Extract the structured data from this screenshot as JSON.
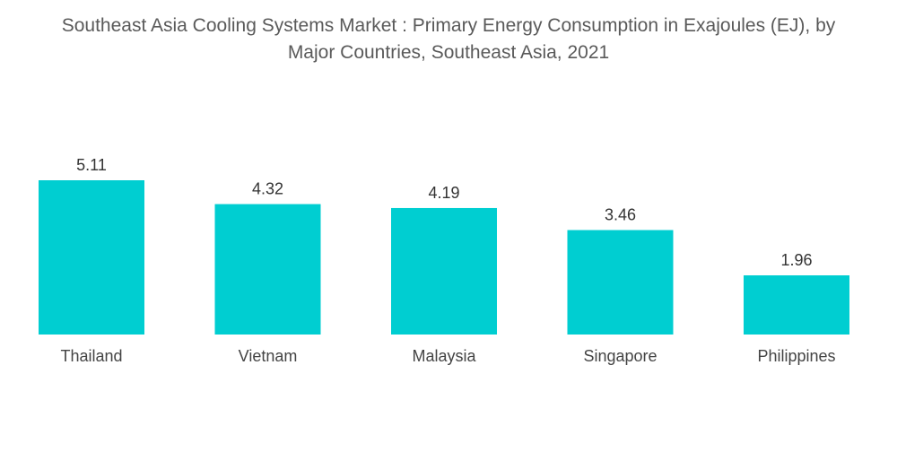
{
  "chart_data": {
    "type": "bar",
    "title_lines": [
      "Southeast Asia Cooling Systems Market : Primary Energy Consumption in Exajoules (EJ), by",
      "Major Countries, Southeast Asia, 2021"
    ],
    "categories": [
      "Thailand",
      "Vietnam",
      "Malaysia",
      "Singapore",
      "Philippines"
    ],
    "values": [
      5.11,
      4.32,
      4.19,
      3.46,
      1.96
    ],
    "value_labels": [
      "5.11",
      "4.32",
      "4.19",
      "3.46",
      "1.96"
    ],
    "xlabel": "",
    "ylabel": "",
    "ylim": [
      0,
      5.11
    ],
    "grid": false,
    "legend": "none",
    "bar_color": "#00CED1"
  }
}
